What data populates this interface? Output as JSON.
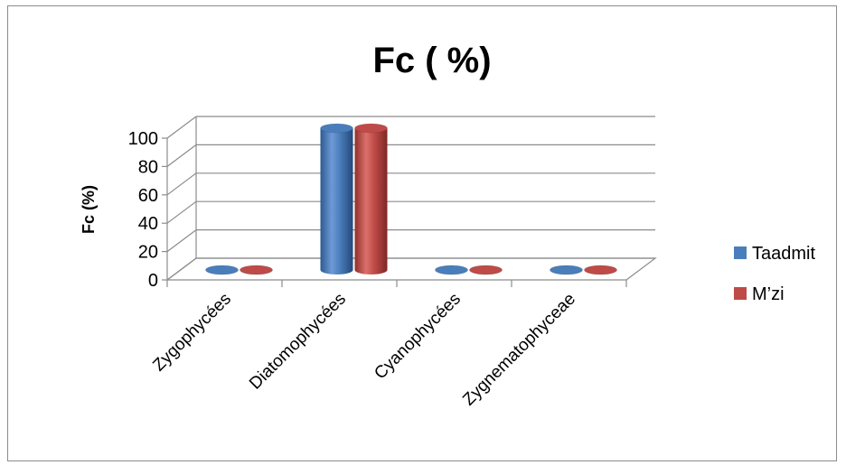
{
  "chart_data": {
    "type": "bar",
    "title": "Fc ( %)",
    "ylabel": "Fc (%)",
    "xlabel": "",
    "categories": [
      "Zygophycées",
      "Diatomophycées",
      "Cyanophycées",
      "Zygnematophyceae"
    ],
    "series": [
      {
        "name": "Taadmit",
        "values": [
          0,
          100,
          0,
          0
        ],
        "color": "#4a7ebb"
      },
      {
        "name": "M’zi",
        "values": [
          0,
          100,
          0,
          0
        ],
        "color": "#be4b48"
      }
    ],
    "ylim": [
      0,
      100
    ],
    "yticks": [
      "0",
      "20",
      "40",
      "60",
      "80",
      "100"
    ],
    "grid": true,
    "legend_position": "right",
    "style": "3d-cylinder"
  }
}
